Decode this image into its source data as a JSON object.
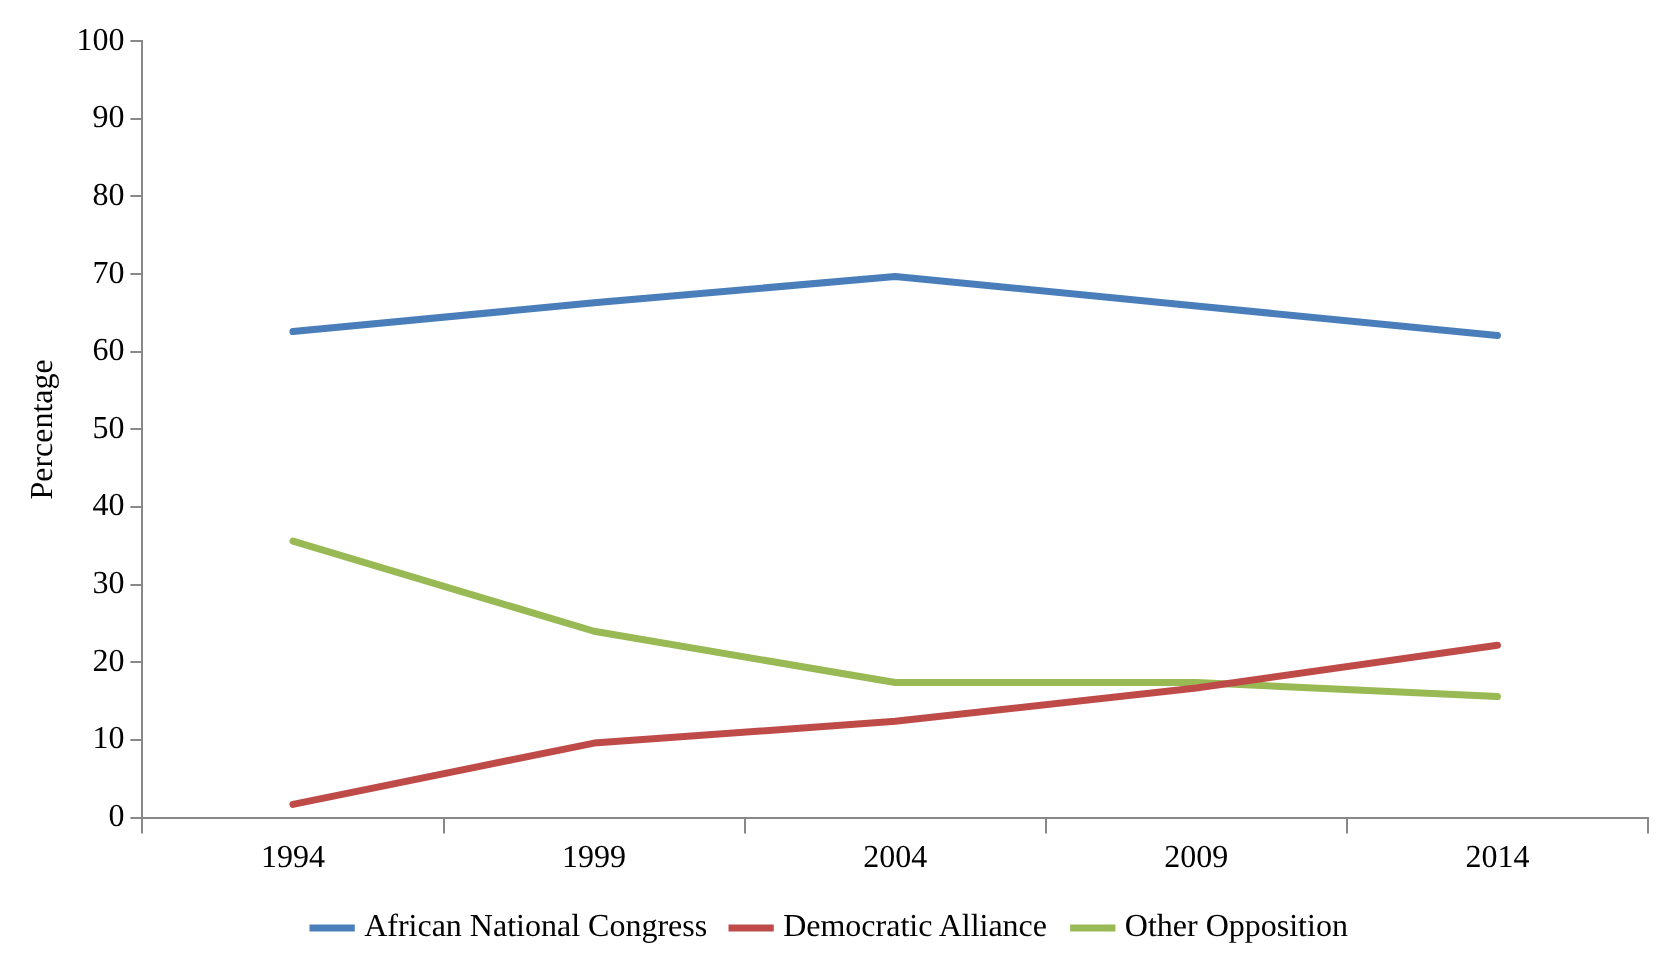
{
  "chart_data": {
    "type": "line",
    "ylabel": "Percentage",
    "categories": [
      "1994",
      "1999",
      "2004",
      "2009",
      "2014"
    ],
    "series": [
      {
        "name": "African National Congress",
        "color": "#4a7ebb",
        "values": [
          62.6,
          66.3,
          69.7,
          65.9,
          62.1
        ]
      },
      {
        "name": "Democratic Alliance",
        "color": "#be4b48",
        "values": [
          1.7,
          9.6,
          12.4,
          16.7,
          22.2
        ]
      },
      {
        "name": "Other Opposition",
        "color": "#98b954",
        "values": [
          35.6,
          24.0,
          17.4,
          17.4,
          15.6
        ]
      }
    ],
    "ylim": [
      0,
      100
    ],
    "yticks": [
      0,
      10,
      20,
      30,
      40,
      50,
      60,
      70,
      80,
      90,
      100
    ],
    "grid": false,
    "legend": "bottom",
    "marker": "none",
    "line_style": "solid"
  }
}
